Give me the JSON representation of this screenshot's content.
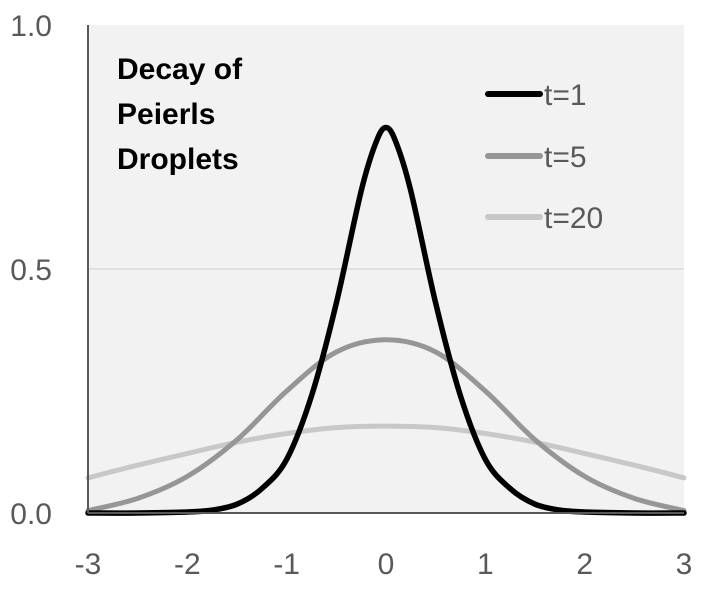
{
  "chart_data": {
    "type": "line",
    "title_lines": [
      "Decay of",
      "Peierls",
      "Droplets"
    ],
    "xlabel": "",
    "ylabel": "",
    "xlim": [
      -3,
      3
    ],
    "ylim": [
      0,
      1
    ],
    "x_ticks": [
      "-3",
      "-2",
      "-1",
      "0",
      "1",
      "2",
      "3"
    ],
    "y_ticks": [
      "0.0",
      "0.5",
      "1.0"
    ],
    "x_tick_values": [
      -3,
      -2,
      -1,
      0,
      1,
      2,
      3
    ],
    "y_tick_values": [
      0,
      0.5,
      1.0
    ],
    "grid": "horizontal at 0.5",
    "legend_position": "top-right",
    "plot_background": "#f2f2f2",
    "series": [
      {
        "name": "t=1",
        "color": "#000000",
        "x": [
          -3,
          -2.5,
          -2,
          -1.75,
          -1.5,
          -1.25,
          -1,
          -0.75,
          -0.5,
          -0.25,
          -0.1,
          0,
          0.1,
          0.25,
          0.5,
          0.75,
          1,
          1.25,
          1.5,
          1.75,
          2,
          2.5,
          3
        ],
        "values": [
          0.0,
          0.0,
          0.002,
          0.006,
          0.018,
          0.05,
          0.11,
          0.24,
          0.43,
          0.66,
          0.76,
          0.79,
          0.76,
          0.66,
          0.43,
          0.24,
          0.11,
          0.05,
          0.018,
          0.006,
          0.002,
          0.0,
          0.0
        ]
      },
      {
        "name": "t=5",
        "color": "#969696",
        "x": [
          -3,
          -2.5,
          -2,
          -1.5,
          -1,
          -0.5,
          0,
          0.5,
          1,
          1.5,
          2,
          2.5,
          3
        ],
        "values": [
          0.005,
          0.03,
          0.075,
          0.15,
          0.25,
          0.33,
          0.355,
          0.33,
          0.25,
          0.15,
          0.075,
          0.03,
          0.005
        ]
      },
      {
        "name": "t=20",
        "color": "#c8c8c8",
        "x": [
          -3,
          -2.5,
          -2,
          -1.5,
          -1,
          -0.5,
          0,
          0.5,
          1,
          1.5,
          2,
          2.5,
          3
        ],
        "values": [
          0.072,
          0.098,
          0.122,
          0.145,
          0.163,
          0.175,
          0.178,
          0.175,
          0.163,
          0.145,
          0.122,
          0.098,
          0.072
        ]
      }
    ]
  }
}
